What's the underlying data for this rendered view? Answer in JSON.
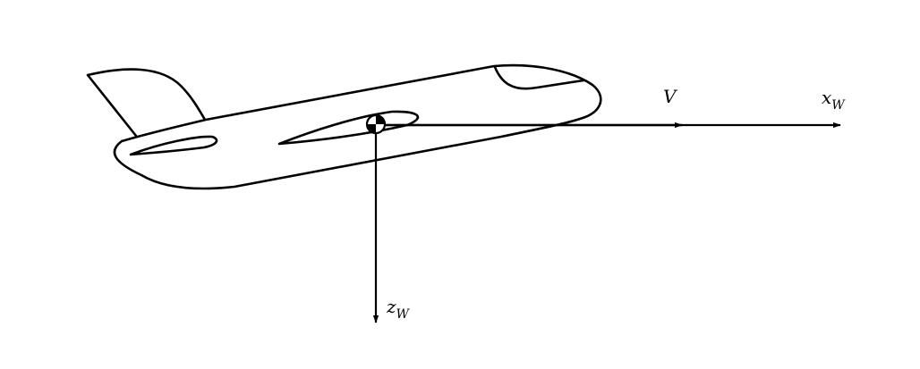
{
  "labels": {
    "velocity": "V",
    "x_axis": {
      "base": "x",
      "sub": "W"
    },
    "z_axis": {
      "base": "z",
      "sub": "W"
    }
  },
  "colors": {
    "line": "#000000",
    "background": "#ffffff"
  }
}
